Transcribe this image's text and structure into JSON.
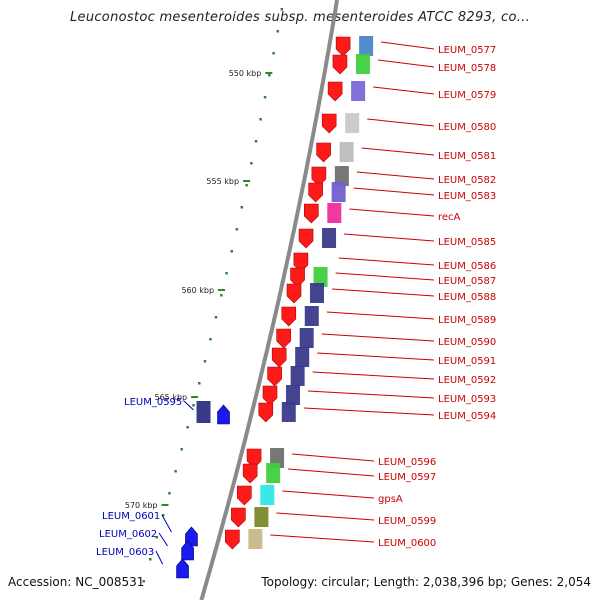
{
  "title": "Leuconostoc mesenteroides subsp. mesenteroides ATCC 8293, co...",
  "footer": {
    "accession": "Accession: NC_008531",
    "summary": "Topology: circular; Length: 2,038,396 bp; Genes: 2,054"
  },
  "colors": {
    "forward_gene": "#ff1a1a",
    "reverse_gene": "#1a1aee",
    "forward_label": "#cc0000",
    "reverse_label": "#0000bb",
    "backbone": "#8a8a8a",
    "ticks": "#2a8a2a"
  },
  "ticks": [
    {
      "kbp": 550,
      "label": "550 kbp"
    },
    {
      "kbp": 555,
      "label": "555 kbp"
    },
    {
      "kbp": 560,
      "label": "560 kbp"
    },
    {
      "kbp": 565,
      "label": "565 kbp"
    },
    {
      "kbp": 570,
      "label": "570 kbp"
    }
  ],
  "forward_genes": [
    {
      "label": "LEUM_0577",
      "band": "#4a86c8"
    },
    {
      "label": "LEUM_0578",
      "band": "#3fcf3f"
    },
    {
      "label": "LEUM_0579",
      "band": "#7a6ad8"
    },
    {
      "label": "LEUM_0580",
      "band": "#c8c8c8"
    },
    {
      "label": "LEUM_0581",
      "band": "#bdbdbd"
    },
    {
      "label": "LEUM_0582",
      "band": "#707070"
    },
    {
      "label": "LEUM_0583",
      "band": "#7060d0"
    },
    {
      "label": "recA",
      "band": "#ee2e9c"
    },
    {
      "label": "LEUM_0585",
      "band": "#3a3a8a"
    },
    {
      "label": "LEUM_0586",
      "band": ""
    },
    {
      "label": "LEUM_0587",
      "band": "#3fcf3f"
    },
    {
      "label": "LEUM_0588",
      "band": "#3a3a8a"
    },
    {
      "label": "LEUM_0589",
      "band": "#3a3a8a"
    },
    {
      "label": "LEUM_0590",
      "band": "#3a3a8a"
    },
    {
      "label": "LEUM_0591",
      "band": "#3a3a8a"
    },
    {
      "label": "LEUM_0592",
      "band": "#3a3a8a"
    },
    {
      "label": "LEUM_0593",
      "band": "#3a3a8a"
    },
    {
      "label": "LEUM_0594",
      "band": "#3a3a8a"
    },
    {
      "label": "LEUM_0596",
      "band": "#707070"
    },
    {
      "label": "LEUM_0597",
      "band": "#3fcf3f"
    },
    {
      "label": "gpsA",
      "band": "#2ee8e8"
    },
    {
      "label": "LEUM_0599",
      "band": "#7a8a2a"
    },
    {
      "label": "LEUM_0600",
      "band": "#c8b888"
    }
  ],
  "reverse_genes": [
    {
      "label": "LEUM_0595"
    },
    {
      "label": "LEUM_0601"
    },
    {
      "label": "LEUM_0602"
    },
    {
      "label": "LEUM_0603"
    }
  ]
}
